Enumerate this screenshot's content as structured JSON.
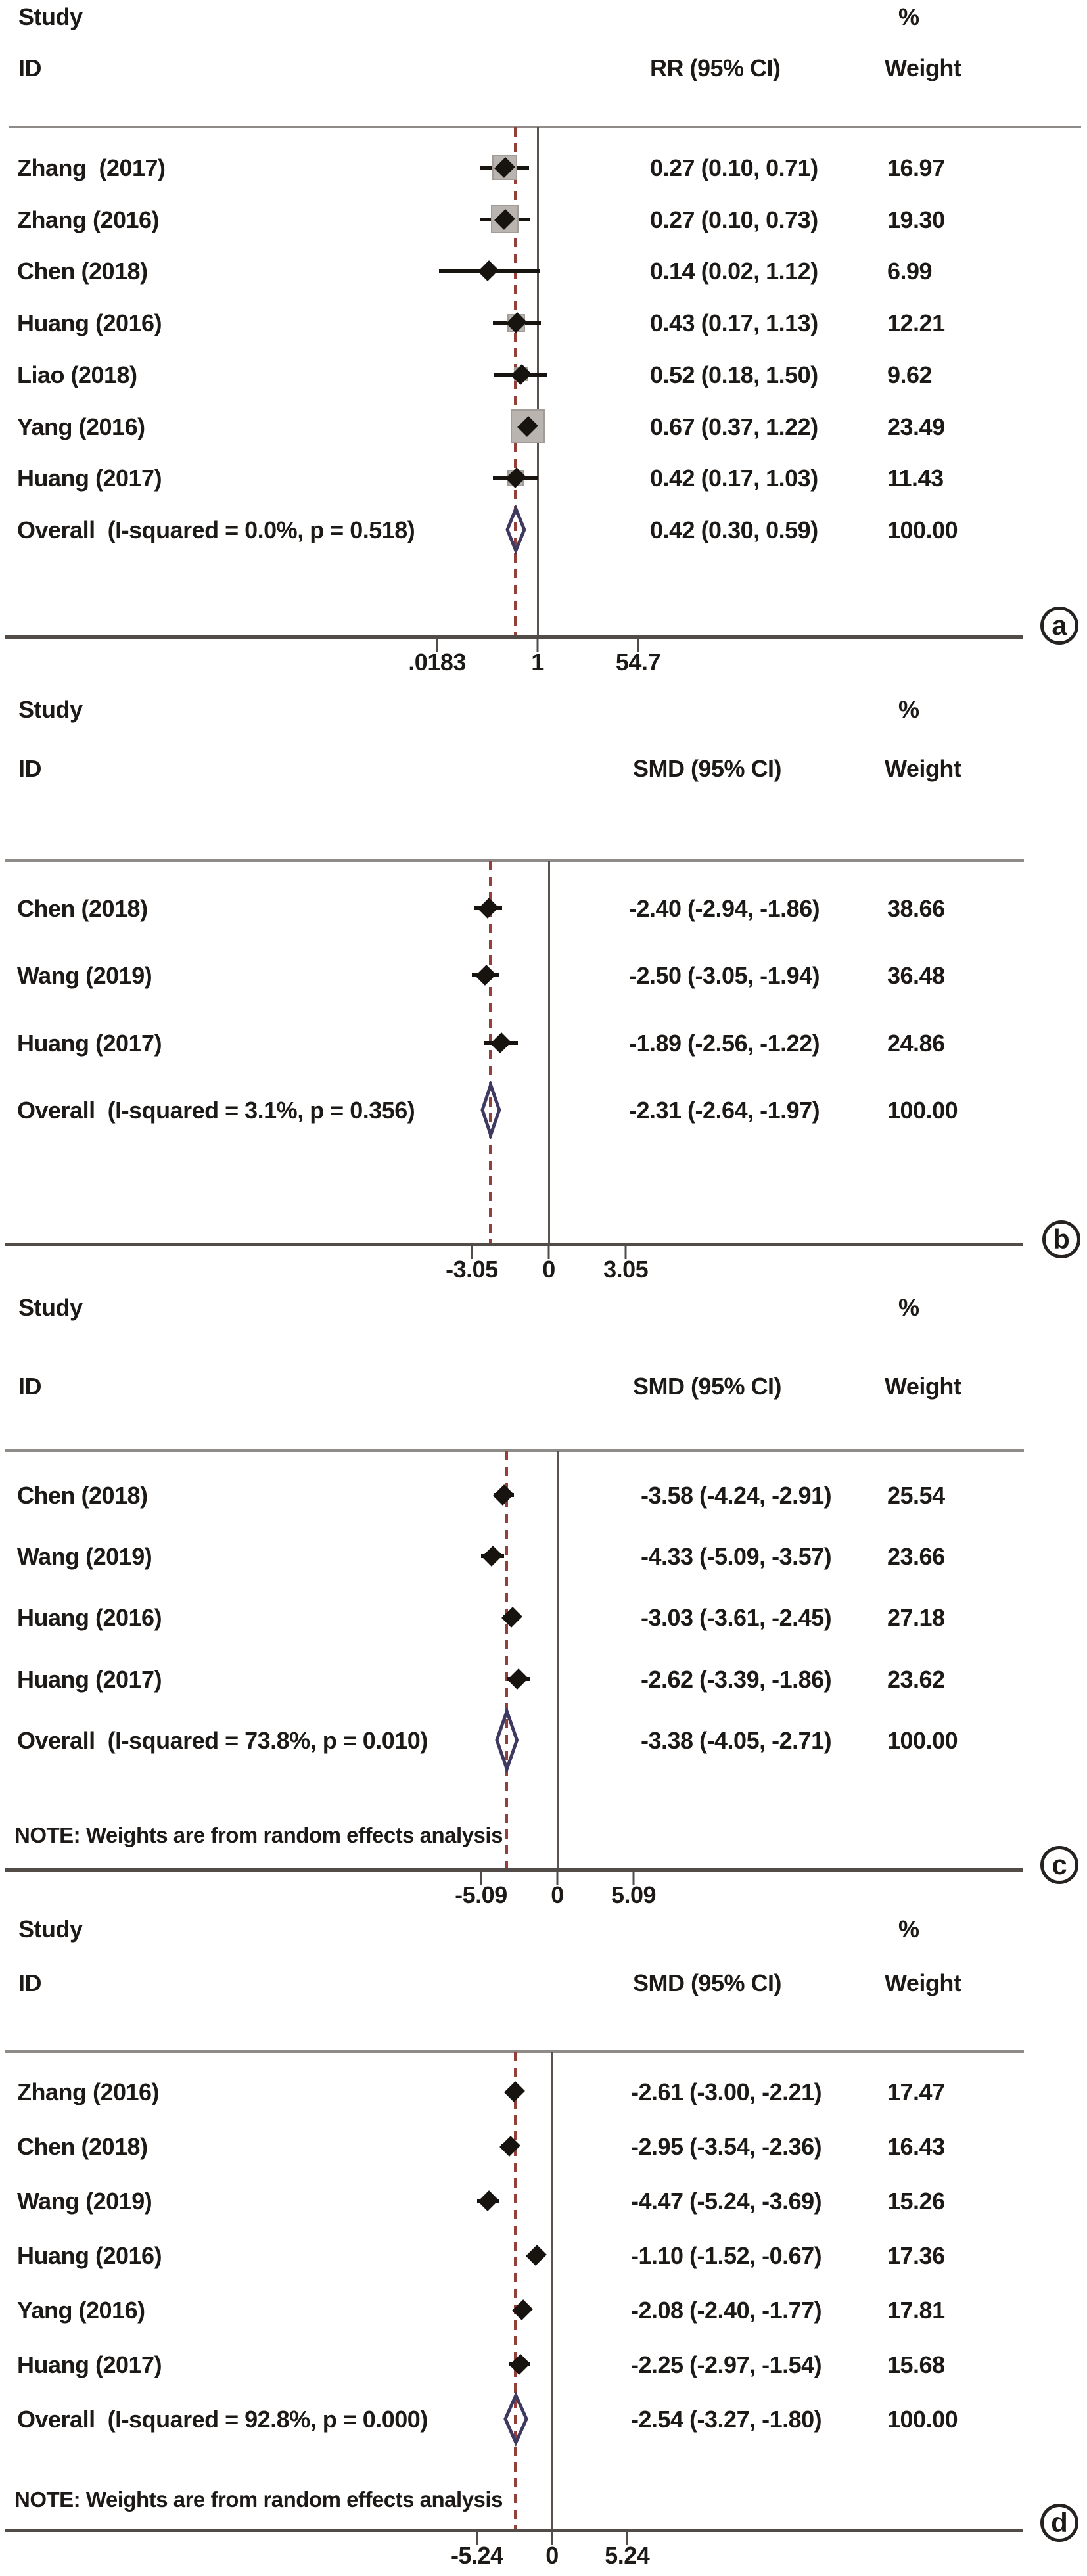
{
  "chart_data": {
    "type": "forest",
    "title": "Forest plots of meta-analysis (panels a-d)",
    "panels": [
      {
        "letter": "a",
        "effect_measure": "RR",
        "header": {
          "study": "Study",
          "id": "ID",
          "percent": "%",
          "effect": "RR (95% CI)",
          "weight": "Weight"
        },
        "axis": {
          "scale": "log",
          "null_value": 1,
          "ticks": [
            {
              "label": ".0183",
              "value": 0.0183
            },
            {
              "label": "1",
              "value": 1
            },
            {
              "label": "54.7",
              "value": 54.7
            }
          ]
        },
        "note": null,
        "rows": [
          {
            "type": "study",
            "label": "Zhang  (2017)",
            "effect": "0.27 (0.10, 0.71)",
            "weight": "16.97",
            "est": 0.27,
            "lo": 0.1,
            "hi": 0.71,
            "w": 16.97
          },
          {
            "type": "study",
            "label": "Zhang (2016)",
            "effect": "0.27 (0.10, 0.73)",
            "weight": "19.30",
            "est": 0.27,
            "lo": 0.1,
            "hi": 0.73,
            "w": 19.3
          },
          {
            "type": "study",
            "label": "Chen (2018)",
            "effect": "0.14 (0.02, 1.12)",
            "weight": "6.99",
            "est": 0.14,
            "lo": 0.02,
            "hi": 1.12,
            "w": 6.99
          },
          {
            "type": "study",
            "label": "Huang (2016)",
            "effect": "0.43 (0.17, 1.13)",
            "weight": "12.21",
            "est": 0.43,
            "lo": 0.17,
            "hi": 1.13,
            "w": 12.21
          },
          {
            "type": "study",
            "label": "Liao (2018)",
            "effect": "0.52 (0.18, 1.50)",
            "weight": "9.62",
            "est": 0.52,
            "lo": 0.18,
            "hi": 1.5,
            "w": 9.62
          },
          {
            "type": "study",
            "label": "Yang (2016)",
            "effect": "0.67 (0.37, 1.22)",
            "weight": "23.49",
            "est": 0.67,
            "lo": 0.37,
            "hi": 1.22,
            "w": 23.49
          },
          {
            "type": "study",
            "label": "Huang (2017)",
            "effect": "0.42 (0.17, 1.03)",
            "weight": "11.43",
            "est": 0.42,
            "lo": 0.17,
            "hi": 1.03,
            "w": 11.43
          },
          {
            "type": "overall",
            "label": "Overall  (I-squared = 0.0%, p = 0.518)",
            "effect": "0.42 (0.30, 0.59)",
            "weight": "100.00",
            "est": 0.42,
            "lo": 0.3,
            "hi": 0.59
          }
        ]
      },
      {
        "letter": "b",
        "effect_measure": "SMD",
        "header": {
          "study": "Study",
          "id": "ID",
          "percent": "%",
          "effect": "SMD (95% CI)",
          "weight": "Weight"
        },
        "axis": {
          "scale": "linear",
          "null_value": 0,
          "ticks": [
            {
              "label": "-3.05",
              "value": -3.05
            },
            {
              "label": "0",
              "value": 0
            },
            {
              "label": "3.05",
              "value": 3.05
            }
          ]
        },
        "note": null,
        "rows": [
          {
            "type": "study",
            "label": "Chen (2018)",
            "effect": "-2.40 (-2.94, -1.86)",
            "weight": "38.66",
            "est": -2.4,
            "lo": -2.94,
            "hi": -1.86,
            "w": 38.66
          },
          {
            "type": "study",
            "label": "Wang (2019)",
            "effect": "-2.50 (-3.05, -1.94)",
            "weight": "36.48",
            "est": -2.5,
            "lo": -3.05,
            "hi": -1.94,
            "w": 36.48
          },
          {
            "type": "study",
            "label": "Huang (2017)",
            "effect": "-1.89 (-2.56, -1.22)",
            "weight": "24.86",
            "est": -1.89,
            "lo": -2.56,
            "hi": -1.22,
            "w": 24.86
          },
          {
            "type": "overall",
            "label": "Overall  (I-squared = 3.1%, p = 0.356)",
            "effect": "-2.31 (-2.64, -1.97)",
            "weight": "100.00",
            "est": -2.31,
            "lo": -2.64,
            "hi": -1.97
          }
        ]
      },
      {
        "letter": "c",
        "effect_measure": "SMD",
        "header": {
          "study": "Study",
          "id": "ID",
          "percent": "%",
          "effect": "SMD (95% CI)",
          "weight": "Weight"
        },
        "axis": {
          "scale": "linear",
          "null_value": 0,
          "ticks": [
            {
              "label": "-5.09",
              "value": -5.09
            },
            {
              "label": "0",
              "value": 0
            },
            {
              "label": "5.09",
              "value": 5.09
            }
          ]
        },
        "note": "NOTE: Weights are from random effects analysis",
        "rows": [
          {
            "type": "study",
            "label": "Chen (2018)",
            "effect": "-3.58 (-4.24, -2.91)",
            "weight": "25.54",
            "est": -3.58,
            "lo": -4.24,
            "hi": -2.91,
            "w": 25.54
          },
          {
            "type": "study",
            "label": "Wang (2019)",
            "effect": "-4.33 (-5.09, -3.57)",
            "weight": "23.66",
            "est": -4.33,
            "lo": -5.09,
            "hi": -3.57,
            "w": 23.66
          },
          {
            "type": "study",
            "label": "Huang (2016)",
            "effect": "-3.03 (-3.61, -2.45)",
            "weight": "27.18",
            "est": -3.03,
            "lo": -3.61,
            "hi": -2.45,
            "w": 27.18
          },
          {
            "type": "study",
            "label": "Huang (2017)",
            "effect": "-2.62 (-3.39, -1.86)",
            "weight": "23.62",
            "est": -2.62,
            "lo": -3.39,
            "hi": -1.86,
            "w": 23.62
          },
          {
            "type": "overall",
            "label": "Overall  (I-squared = 73.8%, p = 0.010)",
            "effect": "-3.38 (-4.05, -2.71)",
            "weight": "100.00",
            "est": -3.38,
            "lo": -4.05,
            "hi": -2.71
          }
        ]
      },
      {
        "letter": "d",
        "effect_measure": "SMD",
        "header": {
          "study": "Study",
          "id": "ID",
          "percent": "%",
          "effect": "SMD (95% CI)",
          "weight": "Weight"
        },
        "axis": {
          "scale": "linear",
          "null_value": 0,
          "ticks": [
            {
              "label": "-5.24",
              "value": -5.24
            },
            {
              "label": "0",
              "value": 0
            },
            {
              "label": "5.24",
              "value": 5.24
            }
          ]
        },
        "note": "NOTE: Weights are from random effects analysis",
        "rows": [
          {
            "type": "study",
            "label": "Zhang (2016)",
            "effect": "-2.61 (-3.00, -2.21)",
            "weight": "17.47",
            "est": -2.61,
            "lo": -3.0,
            "hi": -2.21,
            "w": 17.47
          },
          {
            "type": "study",
            "label": "Chen (2018)",
            "effect": "-2.95 (-3.54, -2.36)",
            "weight": "16.43",
            "est": -2.95,
            "lo": -3.54,
            "hi": -2.36,
            "w": 16.43
          },
          {
            "type": "study",
            "label": "Wang (2019)",
            "effect": "-4.47 (-5.24, -3.69)",
            "weight": "15.26",
            "est": -4.47,
            "lo": -5.24,
            "hi": -3.69,
            "w": 15.26
          },
          {
            "type": "study",
            "label": "Huang (2016)",
            "effect": "-1.10 (-1.52, -0.67)",
            "weight": "17.36",
            "est": -1.1,
            "lo": -1.52,
            "hi": -0.67,
            "w": 17.36
          },
          {
            "type": "study",
            "label": "Yang (2016)",
            "effect": "-2.08 (-2.40, -1.77)",
            "weight": "17.81",
            "est": -2.08,
            "lo": -2.4,
            "hi": -1.77,
            "w": 17.81
          },
          {
            "type": "study",
            "label": "Huang (2017)",
            "effect": "-2.25 (-2.97, -1.54)",
            "weight": "15.68",
            "est": -2.25,
            "lo": -2.97,
            "hi": -1.54,
            "w": 15.68
          },
          {
            "type": "overall",
            "label": "Overall  (I-squared = 92.8%, p = 0.000)",
            "effect": "-2.54 (-3.27, -1.80)",
            "weight": "100.00",
            "est": -2.54,
            "lo": -3.27,
            "hi": -1.8
          }
        ]
      }
    ],
    "colors": {
      "dashed_overall_line": "#93403a",
      "null_line": "#5a5350",
      "diamond_outline": "#3e3960",
      "marker": "#17130f",
      "weight_box": "#b9b4b0",
      "rule": "#8f8b88",
      "text": "#1c1917"
    }
  }
}
